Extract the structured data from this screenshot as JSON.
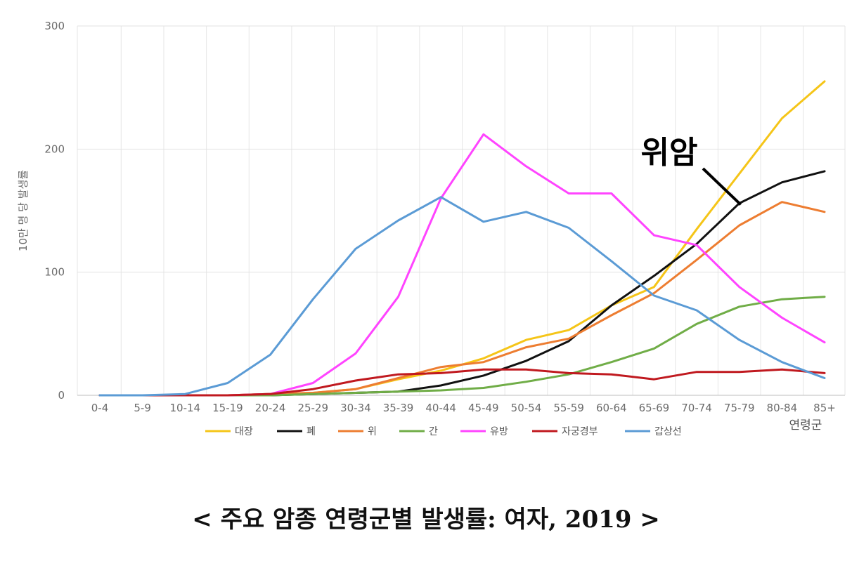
{
  "chart_data": {
    "type": "line",
    "title": "",
    "xlabel": "연령군",
    "ylabel": "10만 명 당 발생률",
    "ylim": [
      0,
      300
    ],
    "yticks": [
      0,
      100,
      200,
      300
    ],
    "grid": true,
    "legend_position": "bottom",
    "categories": [
      "0-4",
      "5-9",
      "10-14",
      "15-19",
      "20-24",
      "25-29",
      "30-34",
      "35-39",
      "40-44",
      "45-49",
      "50-54",
      "55-59",
      "60-64",
      "65-69",
      "70-74",
      "75-79",
      "80-84",
      "85+"
    ],
    "series": [
      {
        "name": "대장",
        "color": "#f5c518",
        "values": [
          0,
          0,
          0,
          0,
          1,
          2,
          5,
          13,
          20,
          30,
          45,
          53,
          73,
          88,
          135,
          180,
          225,
          255
        ]
      },
      {
        "name": "폐",
        "color": "#111111",
        "values": [
          0,
          0,
          0,
          0,
          0,
          1,
          2,
          3,
          8,
          16,
          28,
          44,
          73,
          97,
          123,
          156,
          173,
          182
        ]
      },
      {
        "name": "위",
        "color": "#ed7d31",
        "values": [
          0,
          0,
          0,
          0,
          1,
          2,
          5,
          14,
          23,
          27,
          39,
          46,
          65,
          83,
          110,
          138,
          157,
          149
        ]
      },
      {
        "name": "간",
        "color": "#70ad47",
        "values": [
          0,
          0,
          0,
          0,
          0,
          1,
          2,
          3,
          4,
          6,
          11,
          17,
          27,
          38,
          58,
          72,
          78,
          80
        ]
      },
      {
        "name": "유방",
        "color": "#ff44ff",
        "values": [
          0,
          0,
          0,
          0,
          1,
          10,
          34,
          80,
          160,
          212,
          186,
          164,
          164,
          130,
          122,
          88,
          63,
          43
        ]
      },
      {
        "name": "자궁경부",
        "color": "#c0191f",
        "values": [
          0,
          0,
          0,
          0,
          1,
          5,
          12,
          17,
          18,
          21,
          21,
          18,
          17,
          13,
          19,
          19,
          21,
          18
        ]
      },
      {
        "name": "갑상선",
        "color": "#5b9bd5",
        "values": [
          0,
          0,
          1,
          10,
          33,
          78,
          119,
          142,
          161,
          141,
          149,
          136,
          109,
          81,
          69,
          45,
          27,
          14
        ]
      }
    ],
    "annotation": {
      "text": "위암",
      "target_series": "폐",
      "target_category": "75-79"
    }
  },
  "caption": "< 주요 암종 연령군별 발생률: 여자, 2019 >"
}
